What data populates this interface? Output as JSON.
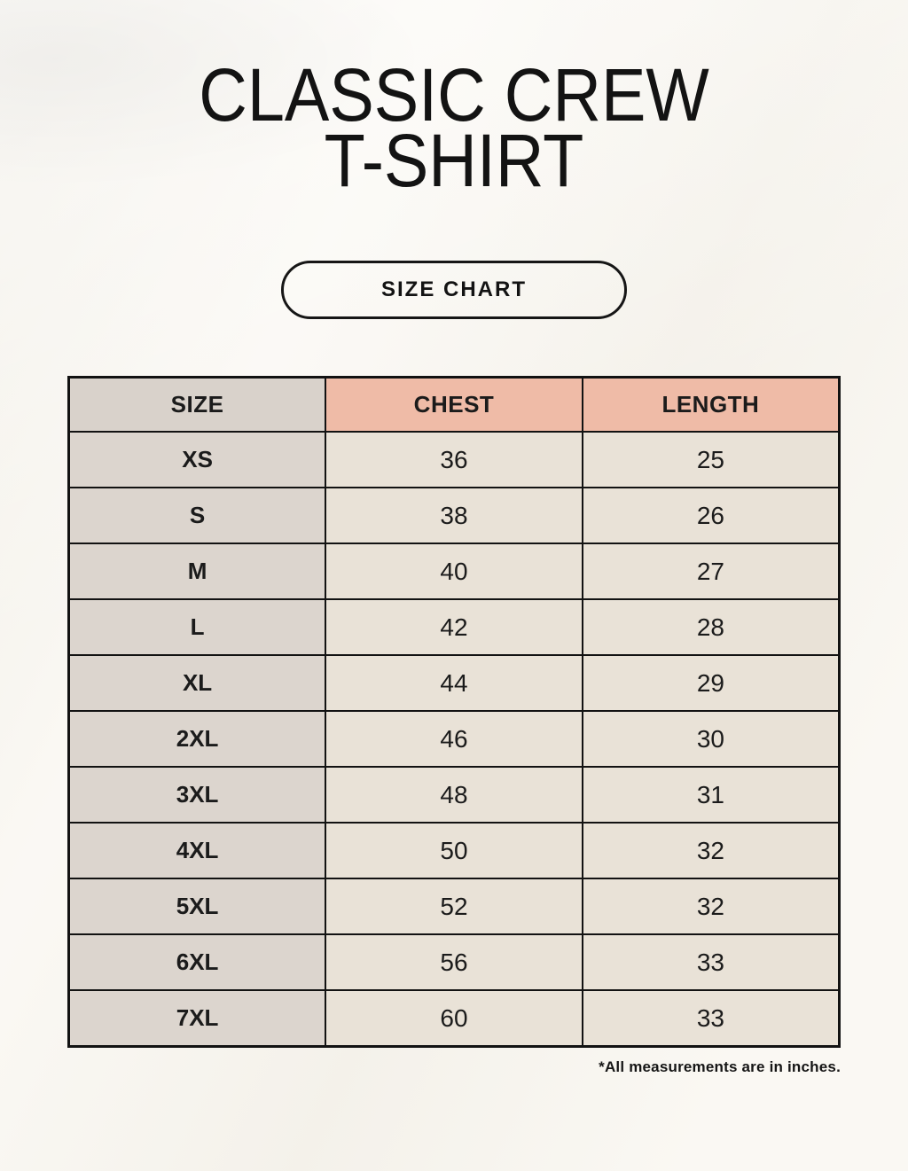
{
  "title": {
    "line1": "CLASSIC CREW",
    "line2": "T-SHIRT"
  },
  "size_chart_button_label": "SIZE CHART",
  "footnote": "*All measurements are in inches.",
  "chart_data": {
    "type": "table",
    "title": "SIZE CHART",
    "columns": [
      "SIZE",
      "CHEST",
      "LENGTH"
    ],
    "rows": [
      [
        "XS",
        36,
        25
      ],
      [
        "S",
        38,
        26
      ],
      [
        "M",
        40,
        27
      ],
      [
        "L",
        42,
        28
      ],
      [
        "XL",
        44,
        29
      ],
      [
        "2XL",
        46,
        30
      ],
      [
        "3XL",
        48,
        31
      ],
      [
        "4XL",
        50,
        32
      ],
      [
        "5XL",
        52,
        32
      ],
      [
        "6XL",
        56,
        33
      ],
      [
        "7XL",
        60,
        33
      ]
    ],
    "units_note": "*All measurements are in inches."
  },
  "colors": {
    "background": "#f8f5ee",
    "header_size_bg": "#d9d2cb",
    "header_measure_bg": "#efbba7",
    "size_column_bg": "#dcd5ce",
    "value_cell_bg": "#e9e2d7",
    "border": "#121212",
    "text": "#1b1b1b"
  }
}
